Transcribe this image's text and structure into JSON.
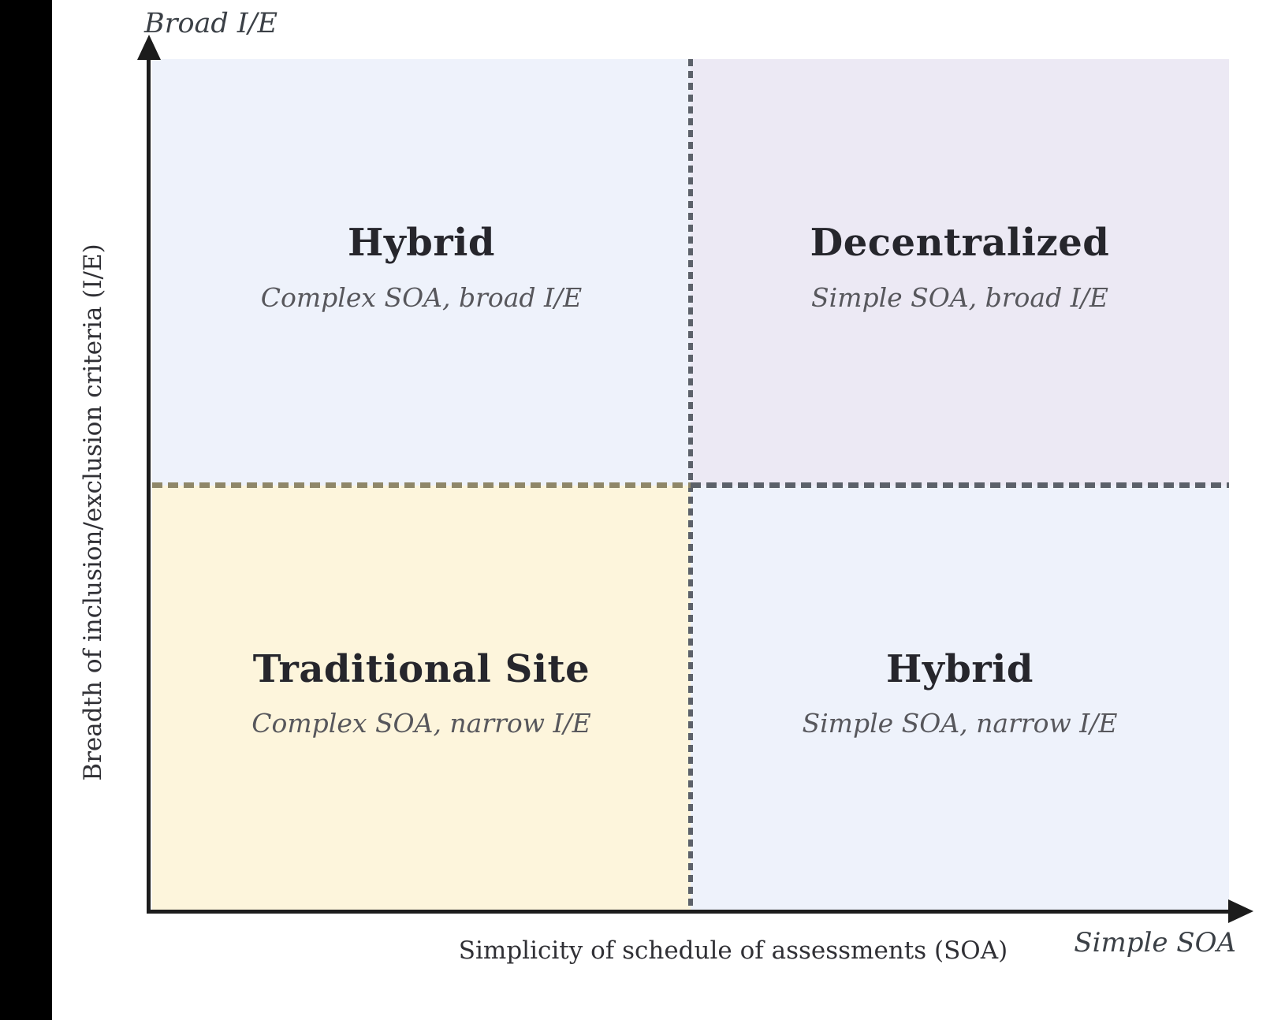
{
  "figure": {
    "y_axis": {
      "label": "Breadth of inclusion/exclusion criteria (I/E)",
      "max_label": "Broad I/E"
    },
    "x_axis": {
      "label": "Simplicity of schedule of assessments (SOA)",
      "max_label": "Simple SOA"
    }
  },
  "quadrants": {
    "top_left": {
      "title": "Hybrid",
      "subtitle": "Complex SOA, broad I/E",
      "bg": "#eef2fb"
    },
    "top_right": {
      "title": "Decentralized",
      "subtitle": "Simple SOA, broad I/E",
      "bg": "#ece9f4"
    },
    "bottom_left": {
      "title": "Traditional Site",
      "subtitle": "Complex SOA, narrow I/E",
      "bg": "#fdf5dc"
    },
    "bottom_right": {
      "title": "Hybrid",
      "subtitle": "Simple SOA, narrow I/E",
      "bg": "#eef2fb"
    }
  },
  "colors": {
    "axis-color": "#1c1c1c",
    "title-color": "#26262c",
    "subtitle-color": "#57575c",
    "dash-slate": "#5c616a",
    "dash-olive": "#8f8769"
  }
}
